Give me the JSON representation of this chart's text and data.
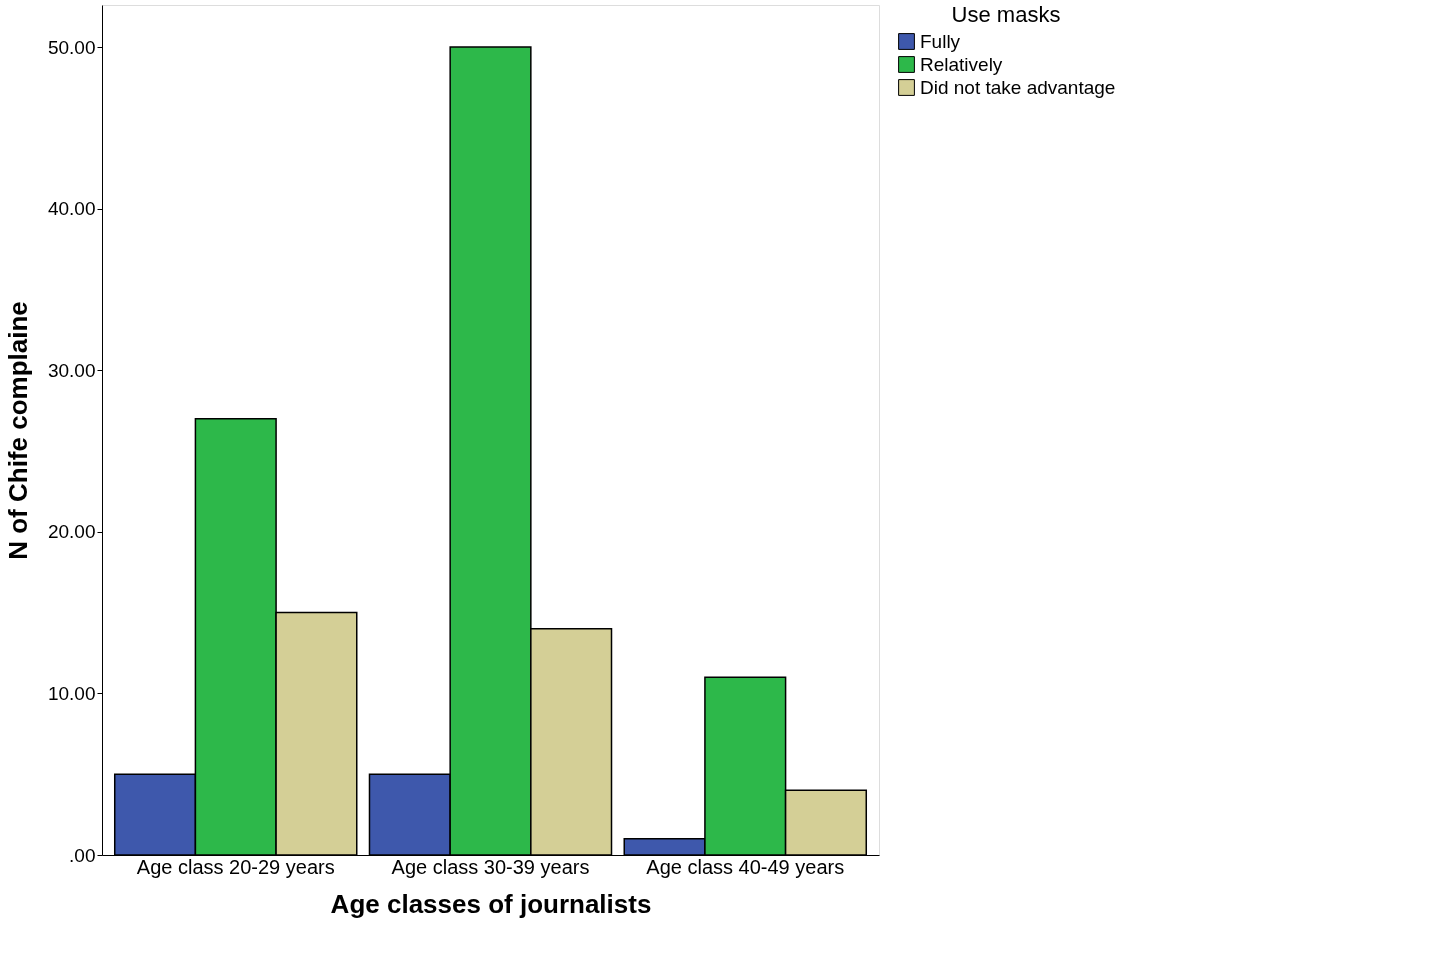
{
  "chart_data": {
    "type": "bar",
    "xlabel": "Age classes of journalists",
    "ylabel": "N of Chife complaine",
    "legend_title": "Use masks",
    "legend": "top right",
    "categories": [
      "Age class 20-29  years",
      "Age class 30-39 years",
      "Age class 40-49 years"
    ],
    "series": [
      {
        "name": "Fully",
        "color": "#3e58ac",
        "values": [
          5,
          5,
          1
        ]
      },
      {
        "name": "Relatively",
        "color": "#2db84a",
        "values": [
          27,
          50,
          11
        ]
      },
      {
        "name": "Did not take advantage",
        "color": "#d4cf96",
        "values": [
          15,
          14,
          4
        ]
      }
    ],
    "ylim": [
      0,
      52.6
    ],
    "yticks": [
      {
        "value": 0,
        "label": ".00"
      },
      {
        "value": 10,
        "label": "10.00"
      },
      {
        "value": 20,
        "label": "20.00"
      },
      {
        "value": 30,
        "label": "30.00"
      },
      {
        "value": 40,
        "label": "40.00"
      },
      {
        "value": 50,
        "label": "50.00"
      }
    ],
    "grid": false
  }
}
